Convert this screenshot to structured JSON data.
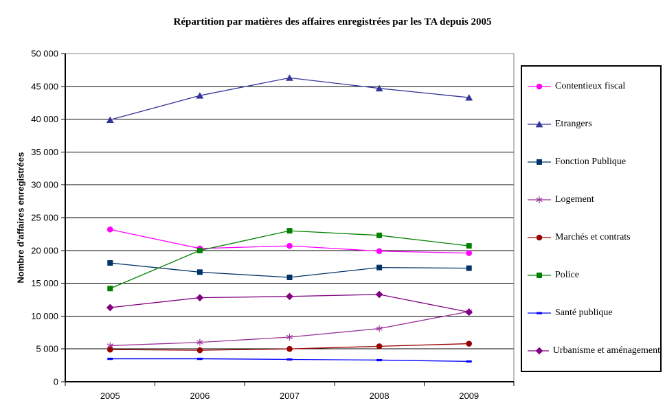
{
  "title": "Répartition par matières des affaires enregistrées par les TA depuis 2005",
  "chart_data": {
    "type": "line",
    "title": "Répartition par matières des affaires enregistrées par les TA depuis 2005",
    "xlabel": "",
    "ylabel": "Nombre d'affaires enregistrées",
    "categories": [
      "2005",
      "2006",
      "2007",
      "2008",
      "2009"
    ],
    "ylim": [
      0,
      50000
    ],
    "ytick_step": 5000,
    "ytick_labels": [
      "0",
      "5 000",
      "10 000",
      "15 000",
      "20 000",
      "25 000",
      "30 000",
      "35 000",
      "40 000",
      "45 000",
      "50 000"
    ],
    "grid": true,
    "legend_position": "right",
    "series": [
      {
        "name": "Contentieux fiscal",
        "color": "#FF00FF",
        "marker": "circle",
        "values": [
          23200,
          20300,
          20700,
          19900,
          19600
        ]
      },
      {
        "name": "Etrangers",
        "color": "#333399",
        "marker": "triangle",
        "values": [
          39900,
          43600,
          46300,
          44700,
          43300
        ]
      },
      {
        "name": "Fonction Publique",
        "color": "#003366",
        "marker": "square",
        "values": [
          18100,
          16700,
          15900,
          17400,
          17300
        ]
      },
      {
        "name": "Logement",
        "color": "#993399",
        "marker": "asterisk",
        "values": [
          5500,
          6000,
          6800,
          8100,
          10700
        ]
      },
      {
        "name": "Marchés et contrats",
        "color": "#990000",
        "marker": "circle",
        "values": [
          4900,
          4800,
          5000,
          5400,
          5800
        ]
      },
      {
        "name": "Police",
        "color": "#008000",
        "marker": "square",
        "values": [
          14200,
          20000,
          23000,
          22300,
          20700
        ]
      },
      {
        "name": "Santé publique",
        "color": "#0000FF",
        "marker": "dash",
        "values": [
          3500,
          3500,
          3400,
          3300,
          3100
        ]
      },
      {
        "name": "Urbanisme et aménagement",
        "color": "#800080",
        "marker": "diamond",
        "values": [
          11300,
          12800,
          13000,
          13300,
          10600
        ]
      }
    ]
  },
  "colors": {
    "background": "#FFFFFF",
    "gridline": "#000000",
    "axis": "#000000",
    "plot_border": "#808080",
    "legend_border": "#000000"
  }
}
